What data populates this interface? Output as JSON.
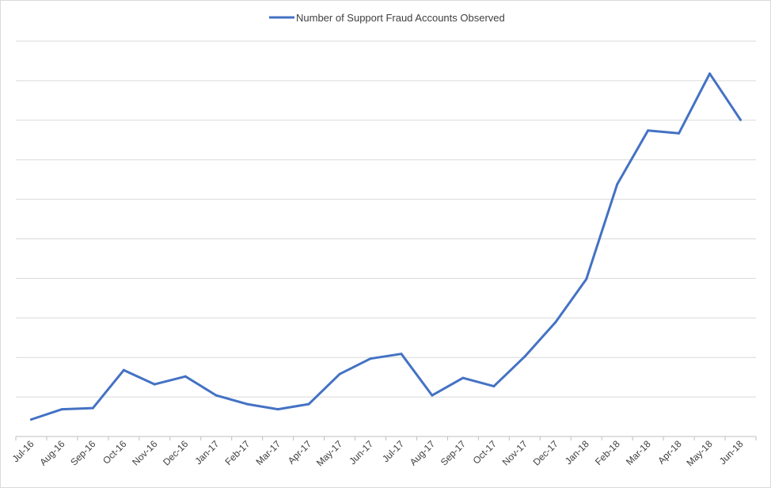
{
  "chart_data": {
    "type": "line",
    "title": "",
    "xlabel": "",
    "ylabel": "",
    "categories": [
      "Jul-16",
      "Aug-16",
      "Sep-16",
      "Oct-16",
      "Nov-16",
      "Dec-16",
      "Jan-17",
      "Feb-17",
      "Mar-17",
      "Apr-17",
      "May-17",
      "Jun-17",
      "Jul-17",
      "Aug-17",
      "Sep-17",
      "Oct-17",
      "Nov-17",
      "Dec-17",
      "Jan-18",
      "Feb-18",
      "Mar-18",
      "Apr-18",
      "May-18",
      "Jun-18"
    ],
    "series": [
      {
        "name": "Number of Support Fraud Accounts Observed",
        "color": "#4472c4",
        "values": [
          0.43,
          0.69,
          0.72,
          1.68,
          1.32,
          1.52,
          1.04,
          0.82,
          0.69,
          0.82,
          1.58,
          1.97,
          2.09,
          1.04,
          1.48,
          1.27,
          2.02,
          2.89,
          3.98,
          6.38,
          7.74,
          7.67,
          9.18,
          8.01
        ]
      }
    ],
    "ylim": [
      0,
      10
    ],
    "y_gridlines": 10,
    "grid": true,
    "legend_position": "top-center",
    "y_tick_labels_shown": false
  }
}
